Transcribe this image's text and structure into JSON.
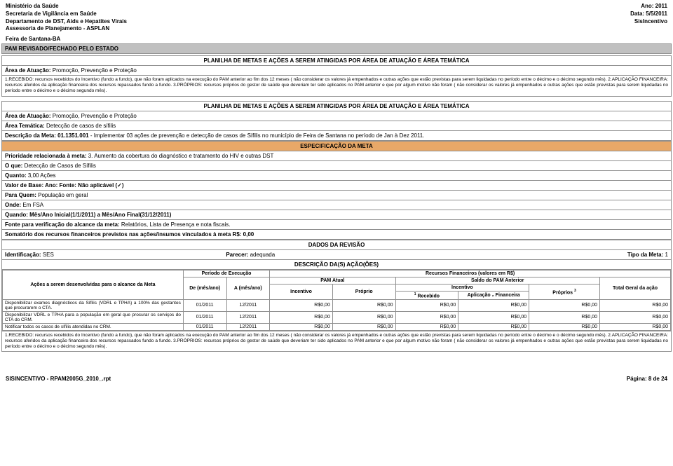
{
  "header": {
    "min": "Ministério da Saúde",
    "sec": "Secretaria de Vigilância em Saúde",
    "dep": "Departamento de DST, Aids e Hepatites Virais",
    "asp": "Assessoria de Planejamento - ASPLAN",
    "ano": "Ano: 2011",
    "data": "Data: 5/5/2011",
    "sis": "SisIncentivo"
  },
  "feira": "Feira de Santana-BA",
  "pamrev": "PAM REVISADO/FECHADO PELO ESTADO",
  "plan_title": "PLANILHA DE METAS E AÇÕES A SEREM ATINGIDAS POR ÁREA DE ATUAÇÃO E ÁREA TEMÁTICA",
  "area1_lbl": "Área de Atuação:",
  "area1_val": "Promoção, Prevenção e Proteção",
  "nota1": "1.RECEBIDO: recursos recebidos do Incentivo (fundo a fundo), que não foram aplicados na execução do PAM anterior ao fim dos 12 meses ( não considerar os valores já empenhados e outras ações que estão previstas para serem liquidadas no período entre o décimo e o décimo segundo mês). 2.APLICAÇÃO FINANCEIRA: recursos aferidos da aplicação financeira dos recursos repassados fundo a fundo. 3.PRÓPRIOS: recursos próprios do gestor de saúde que deveriam ter sido aplicados no PAM anterior e que por algum motivo não foram ( não considerar os valores já empenhados e outras ações que estão previstas para serem liquidadas no período entre o décimo e o décimo segundo mês).",
  "area2_lbl": "Área de Atuação:",
  "area2_val": "Promoção, Prevenção e Proteção",
  "tema_lbl": "Área Temática:",
  "tema_val": "Detecção de casos de sífilis",
  "descr_lbl": "Descrição da Meta: 01.1351.001",
  "descr_val": " - Implementar 03 ações de prevenção e detecção de casos de Sífilis no município de Feira de Santana no período de Jan à Dez 2011.",
  "espec": "ESPECIFICAÇÃO DA META",
  "prio_lbl": "Prioridade relacionada à meta:",
  "prio_val": " 3. Aumento da cobertura do diagnóstico e tratamento do HIV e outras DST",
  "oque_lbl": "O que:",
  "oque_val": " Detecção de Casos de Sífilis",
  "qto_lbl": "Quanto:",
  "qto_val": " 3,00 Ações",
  "vb_lbl": "Valor de Base:  Ano:    Fonte:    Não aplicável (✓)",
  "pq_lbl": "Para Quem:",
  "pq_val": " População em geral",
  "onde_lbl": "Onde:",
  "onde_val": " Em FSA",
  "qdo_lbl": "Quando: Mês/Ano Inicial(1/1/2011)  a Mês/Ano Final(31/12/2011)",
  "fonte_lbl": "Fonte para verificação do alcance da meta:",
  "fonte_val": " Relatórios, Lista de Presença e nota fiscais.",
  "som_lbl": "Somatório dos recursos financeiros previstos nas ações/insumos vinculados à meta R$: 0,00",
  "dados_rev": "DADOS DA REVISÃO",
  "ident_lbl": "Identificação:",
  "ident_val": " SES",
  "parecer_lbl": "Parecer:",
  "parecer_val": " adequada",
  "tipo_lbl": "Tipo da Meta:",
  "tipo_val": " 1",
  "descr_acoes": "DESCRIÇÃO DA(S) AÇÃO(ÕES)",
  "tbl": {
    "c0": "Ações a serem desenvolvidas para o alcance da Meta",
    "c1": "Período de Execução",
    "c1a": "De (mês/ano)",
    "c1b": "A (mês/ano)",
    "c2": "Recursos Financeiros (valores em R$)",
    "c2a": "PAM Atual",
    "c2a1": "Incentivo",
    "c2a2": "Próprio",
    "c2b": "Saldo do PAM Anterior",
    "c2b1": "Incentivo",
    "c2b1a": "Recebido",
    "c2b1b": "Aplicação ₂ Financeira",
    "c2b2": "Próprios",
    "c3": "Total Geral da ação",
    "sup1": "1",
    "sup3": "3"
  },
  "rows": [
    {
      "desc": "Disponibilizar exames diagnósticos da Sífilis (VDRL e TPHA) a 100% das gestantes que procurarem o CTA.",
      "de": "01/2011",
      "a": "12/2011",
      "v": [
        "R$0,00",
        "R$0,00",
        "R$0,00",
        "R$0,00",
        "R$0,00",
        "R$0,00"
      ]
    },
    {
      "desc": "Disponibilizar VDRL e TPHA para a população em geral que procurar os serviços do CTA do CRM.",
      "de": "01/2011",
      "a": "12/2011",
      "v": [
        "R$0,00",
        "R$0,00",
        "R$0,00",
        "R$0,00",
        "R$0,00",
        "R$0,00"
      ]
    },
    {
      "desc": "Notificar todos os casos de sífilis atendidas no CRM.",
      "de": "01/2011",
      "a": "12/2011",
      "v": [
        "R$0,00",
        "R$0,00",
        "R$0,00",
        "R$0,00",
        "R$0,00",
        "R$0,00"
      ]
    }
  ],
  "footer": {
    "left": "SISINCENTIVO - RPAM2005G_2010_.rpt",
    "right": "Página: 8 de 24"
  }
}
